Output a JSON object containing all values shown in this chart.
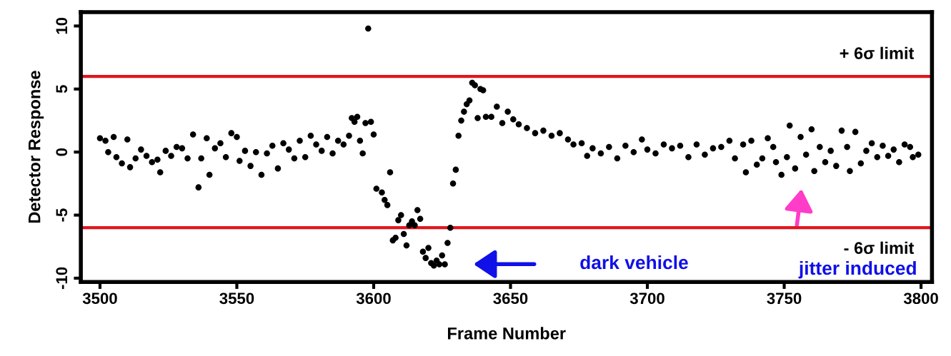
{
  "chart_data": {
    "type": "scatter",
    "xlabel": "Frame Number",
    "ylabel": "Detector Response",
    "xlim": [
      3493,
      3804
    ],
    "xticks": [
      3500,
      3550,
      3600,
      3650,
      3700,
      3750,
      3800
    ],
    "ylim": [
      -10.3,
      11.1
    ],
    "yticks": [
      -10,
      -5,
      0,
      5,
      10
    ],
    "grid": false,
    "legend": false,
    "marker": "circle",
    "ref_lines": [
      {
        "axis": "y",
        "value": 6,
        "label": "+ 6σ limit",
        "color": "#e0161c"
      },
      {
        "axis": "y",
        "value": -6,
        "label": "- 6σ limit",
        "color": "#e0161c"
      }
    ],
    "annotations": [
      "dark vehicle",
      "jitter induced"
    ],
    "series": [
      {
        "color": "#000000",
        "x": [
          3500,
          3502,
          3503,
          3505,
          3506,
          3508,
          3510,
          3511,
          3513,
          3515,
          3517,
          3519,
          3521,
          3522,
          3524,
          3526,
          3528,
          3530,
          3532,
          3534,
          3536,
          3537,
          3539,
          3540,
          3542,
          3544,
          3546,
          3548,
          3550,
          3551,
          3553,
          3555,
          3557,
          3559,
          3561,
          3563,
          3565,
          3567,
          3569,
          3571,
          3573,
          3575,
          3577,
          3579,
          3581,
          3583,
          3585,
          3587,
          3589,
          3591,
          3592,
          3593,
          3594,
          3595,
          3596,
          3597,
          3598,
          3599,
          3600,
          3601,
          3603,
          3604,
          3605,
          3606,
          3607,
          3608,
          3609,
          3610,
          3611,
          3612,
          3613,
          3614,
          3615,
          3616,
          3617,
          3618,
          3619,
          3620,
          3621,
          3622,
          3623,
          3624,
          3625,
          3626,
          3627,
          3628,
          3629,
          3630,
          3631,
          3632,
          3633,
          3634,
          3635,
          3636,
          3637,
          3638,
          3639,
          3640,
          3641,
          3643,
          3645,
          3647,
          3649,
          3651,
          3653,
          3656,
          3659,
          3662,
          3665,
          3668,
          3671,
          3673,
          3676,
          3678,
          3680,
          3683,
          3686,
          3689,
          3692,
          3695,
          3698,
          3700,
          3703,
          3706,
          3709,
          3712,
          3715,
          3718,
          3721,
          3724,
          3727,
          3730,
          3732,
          3735,
          3736,
          3738,
          3740,
          3742,
          3744,
          3746,
          3747,
          3749,
          3751,
          3752,
          3754,
          3756,
          3758,
          3760,
          3761,
          3763,
          3765,
          3767,
          3769,
          3771,
          3773,
          3774,
          3776,
          3778,
          3780,
          3782,
          3784,
          3786,
          3788,
          3790,
          3792,
          3794,
          3796,
          3797,
          3799
        ],
        "values": [
          1.1,
          0.9,
          0.0,
          1.2,
          -0.4,
          -0.9,
          1.0,
          -1.2,
          -0.5,
          0.2,
          -0.3,
          -0.8,
          -0.6,
          -1.6,
          0.1,
          -0.3,
          0.4,
          0.3,
          -0.5,
          1.4,
          -2.8,
          -0.5,
          1.1,
          -1.8,
          0.3,
          0.7,
          -0.4,
          1.5,
          1.2,
          -0.7,
          0.1,
          -1.1,
          0.0,
          -1.8,
          -0.1,
          0.5,
          -1.3,
          0.7,
          0.2,
          -0.5,
          0.9,
          -0.4,
          1.3,
          0.6,
          0.1,
          1.2,
          -0.1,
          0.9,
          0.6,
          1.3,
          2.7,
          2.4,
          2.8,
          0.9,
          -0.1,
          2.3,
          9.8,
          2.4,
          1.4,
          -2.9,
          -3.2,
          -3.8,
          -4.2,
          -1.6,
          -7.0,
          -6.8,
          -5.4,
          -5.0,
          -6.5,
          -7.4,
          -5.8,
          -5.5,
          -5.8,
          -4.6,
          -5.3,
          -7.9,
          -8.4,
          -7.6,
          -8.8,
          -9.0,
          -8.6,
          -8.9,
          -8.2,
          -8.9,
          -7.2,
          -6.0,
          -2.5,
          -1.4,
          1.3,
          2.5,
          3.2,
          3.8,
          4.1,
          5.5,
          5.3,
          2.7,
          5.0,
          4.9,
          2.8,
          2.8,
          3.6,
          2.3,
          3.2,
          2.6,
          2.2,
          1.9,
          1.5,
          1.7,
          1.3,
          1.5,
          1.0,
          0.6,
          0.7,
          -0.3,
          0.3,
          -0.1,
          0.4,
          -0.5,
          0.5,
          0.0,
          1.0,
          0.2,
          -0.1,
          0.6,
          0.3,
          0.5,
          -0.4,
          0.6,
          -0.2,
          0.3,
          0.4,
          0.9,
          -0.5,
          0.6,
          -1.6,
          0.9,
          -1.0,
          -0.5,
          1.1,
          0.4,
          -0.8,
          -1.8,
          -0.4,
          2.1,
          -1.3,
          1.2,
          -0.2,
          1.8,
          -1.5,
          0.4,
          -0.8,
          0.1,
          -1.1,
          1.7,
          0.4,
          -1.5,
          1.6,
          -0.9,
          0.1,
          0.7,
          -0.4,
          0.5,
          -0.3,
          0.2,
          -0.8,
          0.6,
          0.4,
          -0.4,
          -0.2
        ]
      }
    ]
  }
}
